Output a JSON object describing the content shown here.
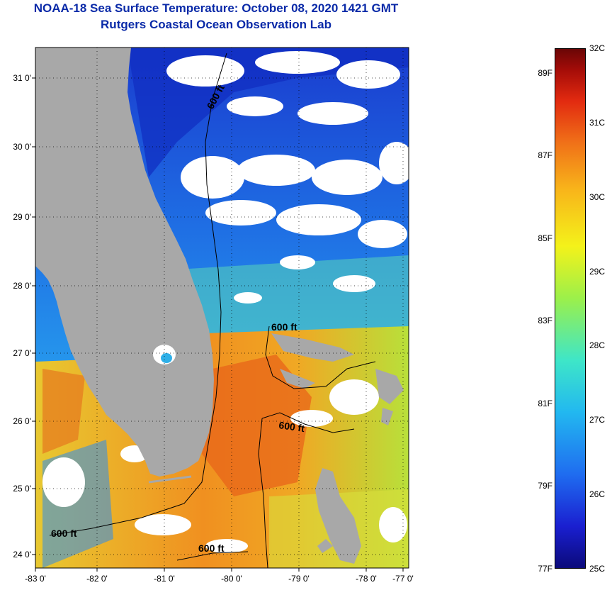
{
  "header": {
    "title": "NOAA-18 Sea Surface Temperature:  October 08, 2020 1421 GMT",
    "subtitle": "Rutgers Coastal Ocean Observation Lab"
  },
  "map": {
    "region": "Florida / Bahamas",
    "lon_ticks": [
      "-83 0'",
      "-82 0'",
      "-81 0'",
      "-80 0'",
      "-79 0'",
      "-78 0'",
      "-77 0'"
    ],
    "lat_ticks": [
      "31 0'",
      "30 0'",
      "29 0'",
      "28 0'",
      "27 0'",
      "26 0'",
      "25 0'",
      "24 0'"
    ],
    "contour_labels": [
      "600 ft",
      "600 ft",
      "600 ft",
      "600 ft",
      "600 ft"
    ],
    "colors": {
      "land": "#a8a8a8",
      "cloud": "#ffffff",
      "title": "#0a2aa8"
    }
  },
  "colorbar": {
    "min_c": 25,
    "max_c": 32,
    "celsius_labels": [
      "32C",
      "31C",
      "30C",
      "29C",
      "28C",
      "27C",
      "26C",
      "25C"
    ],
    "fahrenheit_labels": [
      "89F",
      "87F",
      "85F",
      "83F",
      "81F",
      "79F",
      "77F"
    ]
  }
}
